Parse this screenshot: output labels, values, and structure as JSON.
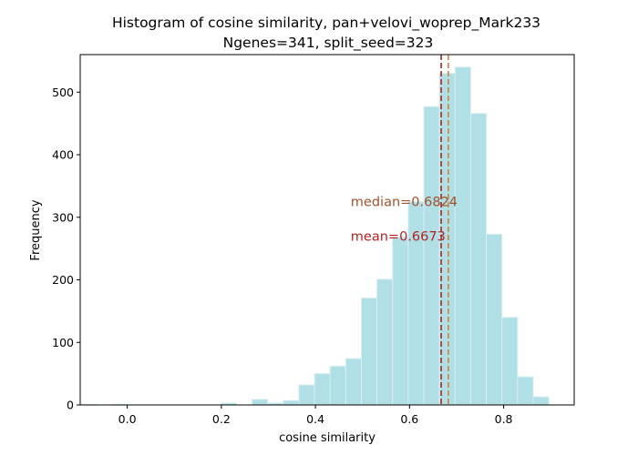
{
  "chart_data": {
    "type": "bar",
    "title_line1": "Histogram of cosine similarity, pan+velovi_woprep_Mark233",
    "title_line2": "Ngenes=341, split_seed=323",
    "xlabel": "cosine similarity",
    "ylabel": "Frequency",
    "xlim": [
      -0.1,
      0.95
    ],
    "ylim": [
      0,
      560
    ],
    "xticks": [
      0.0,
      0.2,
      0.4,
      0.6,
      0.8
    ],
    "xtick_labels": [
      "0.0",
      "0.2",
      "0.4",
      "0.6",
      "0.8"
    ],
    "yticks": [
      0,
      100,
      200,
      300,
      400,
      500
    ],
    "ytick_labels": [
      "0",
      "100",
      "200",
      "300",
      "400",
      "500"
    ],
    "bin_edges": [
      -0.1,
      -0.0668,
      -0.0336,
      -0.0004,
      0.0328,
      0.066,
      0.0992,
      0.1324,
      0.1656,
      0.1988,
      0.232,
      0.2652,
      0.2984,
      0.3316,
      0.3648,
      0.398,
      0.4312,
      0.4644,
      0.4976,
      0.5308,
      0.564,
      0.5972,
      0.6304,
      0.6636,
      0.6968,
      0.73,
      0.7632,
      0.7964,
      0.8296,
      0.8628,
      0.896,
      0.9292
    ],
    "counts": [
      1,
      0,
      1,
      0,
      0,
      0,
      0,
      0,
      0,
      3,
      0,
      9,
      3,
      7,
      32,
      50,
      62,
      74,
      171,
      201,
      268,
      325,
      477,
      530,
      540,
      466,
      273,
      140,
      45,
      13,
      0
    ],
    "bar_color": "#b0dfe5",
    "bar_edge_color": "#d9eef1",
    "median": 0.6824,
    "median_label": "median=0.6824",
    "median_color": "#cd853f",
    "mean": 0.6673,
    "mean_label": "mean=0.6673",
    "mean_color": "#b22222",
    "label_color_median": "#a0522d",
    "label_color_mean": "#b22222",
    "annotation_x": 0.475,
    "median_label_y": 325,
    "mean_label_y": 270,
    "grid": false,
    "legend": "none"
  }
}
